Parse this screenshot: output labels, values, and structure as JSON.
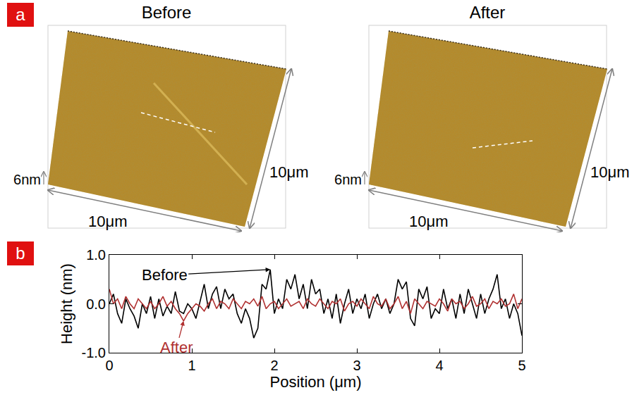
{
  "panel_a": {
    "letter": "a",
    "images": [
      {
        "title": "Before",
        "height_label": "6nm",
        "x_label": "10μm",
        "y_label": "10μm"
      },
      {
        "title": "After",
        "height_label": "6nm",
        "x_label": "10μm",
        "y_label": "10μm"
      }
    ]
  },
  "panel_b": {
    "letter": "b"
  },
  "chart_data": {
    "type": "line",
    "x_label": "Position (μm)",
    "y_label": "Height (nm)",
    "x": [
      0,
      0.05,
      0.1,
      0.15,
      0.2,
      0.25,
      0.3,
      0.35,
      0.4,
      0.45,
      0.5,
      0.55,
      0.6,
      0.65,
      0.7,
      0.75,
      0.8,
      0.85,
      0.9,
      0.95,
      1,
      1.05,
      1.1,
      1.15,
      1.2,
      1.25,
      1.3,
      1.35,
      1.4,
      1.45,
      1.5,
      1.55,
      1.6,
      1.65,
      1.7,
      1.75,
      1.8,
      1.85,
      1.9,
      1.95,
      2,
      2.05,
      2.1,
      2.15,
      2.2,
      2.25,
      2.3,
      2.35,
      2.4,
      2.45,
      2.5,
      2.55,
      2.6,
      2.65,
      2.7,
      2.75,
      2.8,
      2.85,
      2.9,
      2.95,
      3,
      3.05,
      3.1,
      3.15,
      3.2,
      3.25,
      3.3,
      3.35,
      3.4,
      3.45,
      3.5,
      3.55,
      3.6,
      3.65,
      3.7,
      3.75,
      3.8,
      3.85,
      3.9,
      3.95,
      4,
      4.05,
      4.1,
      4.15,
      4.2,
      4.25,
      4.3,
      4.35,
      4.4,
      4.45,
      4.5,
      4.55,
      4.6,
      4.65,
      4.7,
      4.75,
      4.8,
      4.85,
      4.9,
      4.95,
      5
    ],
    "series": [
      {
        "name": "Before",
        "color": "#000000",
        "values": [
          0.0,
          0.2,
          -0.2,
          -0.4,
          0.1,
          -0.1,
          -0.25,
          -0.5,
          0.0,
          -0.2,
          0.15,
          -0.3,
          0.1,
          -0.25,
          -0.05,
          -0.2,
          0.25,
          -0.15,
          -0.2,
          0.0,
          -0.1,
          -0.3,
          0.05,
          0.4,
          -0.1,
          0.2,
          0.35,
          -0.1,
          0.3,
          0.1,
          0.2,
          -0.2,
          -0.4,
          -0.1,
          -0.3,
          -0.7,
          -0.5,
          0.4,
          0.3,
          0.7,
          -0.2,
          0.1,
          -0.1,
          0.5,
          0.3,
          0.6,
          0.1,
          0.4,
          -0.1,
          0.5,
          0.2,
          0.3,
          -0.2,
          0.1,
          -0.3,
          0.2,
          -0.4,
          0.0,
          0.3,
          -0.2,
          0.1,
          -0.1,
          0.2,
          -0.3,
          0.0,
          0.2,
          -0.1,
          0.1,
          -0.2,
          0.0,
          0.5,
          0.3,
          0.45,
          -0.3,
          -0.45,
          0.3,
          0.1,
          0.35,
          -0.3,
          -0.1,
          -0.2,
          0.3,
          -0.1,
          0.1,
          -0.3,
          0.2,
          -0.2,
          0.3,
          0.0,
          -0.3,
          0.2,
          -0.2,
          0.1,
          0.3,
          0.6,
          -0.1,
          0.1,
          -0.3,
          0.0,
          -0.2,
          -0.65
        ]
      },
      {
        "name": "After",
        "color": "#b03030",
        "values": [
          0.3,
          0.0,
          0.1,
          -0.1,
          0.15,
          0.0,
          -0.1,
          0.1,
          0.0,
          -0.1,
          0.05,
          -0.1,
          0.0,
          0.15,
          -0.05,
          0.05,
          -0.1,
          -0.2,
          -0.35,
          -0.2,
          -0.1,
          0.0,
          -0.05,
          -0.15,
          0.0,
          0.1,
          -0.1,
          0.05,
          0.0,
          -0.1,
          0.1,
          0.0,
          -0.1,
          0.05,
          0.0,
          0.1,
          -0.05,
          0.15,
          -0.1,
          0.0,
          0.05,
          -0.1,
          0.0,
          0.1,
          -0.05,
          0.0,
          0.05,
          -0.1,
          0.1,
          0.0,
          -0.05,
          0.1,
          0.0,
          -0.1,
          0.05,
          0.0,
          0.1,
          -0.15,
          0.0,
          0.05,
          -0.05,
          0.1,
          0.0,
          -0.1,
          0.15,
          0.0,
          -0.05,
          0.1,
          -0.1,
          0.0,
          0.15,
          -0.1,
          0.05,
          -0.2,
          0.1,
          0.0,
          -0.1,
          0.05,
          0.0,
          -0.05,
          0.1,
          0.0,
          -0.15,
          0.1,
          0.0,
          0.05,
          -0.1,
          0.0,
          0.15,
          -0.05,
          0.0,
          0.1,
          -0.1,
          0.05,
          0.0,
          0.1,
          -0.05,
          0.0,
          0.2,
          -0.1,
          0.1
        ]
      }
    ],
    "annotations": [
      {
        "text": "Before",
        "x": 1.95,
        "y": 0.7
      },
      {
        "text": "After",
        "x": 0.9,
        "y": -0.35
      }
    ],
    "xlim": [
      0,
      5
    ],
    "xticks": [
      0,
      1,
      2,
      3,
      4,
      5
    ],
    "ylim": [
      -1,
      1
    ],
    "yticks": [
      {
        "value": -1,
        "label": "-1.0"
      },
      {
        "value": 0,
        "label": "0.0"
      },
      {
        "value": 1,
        "label": "1.0"
      }
    ],
    "grid": false
  }
}
